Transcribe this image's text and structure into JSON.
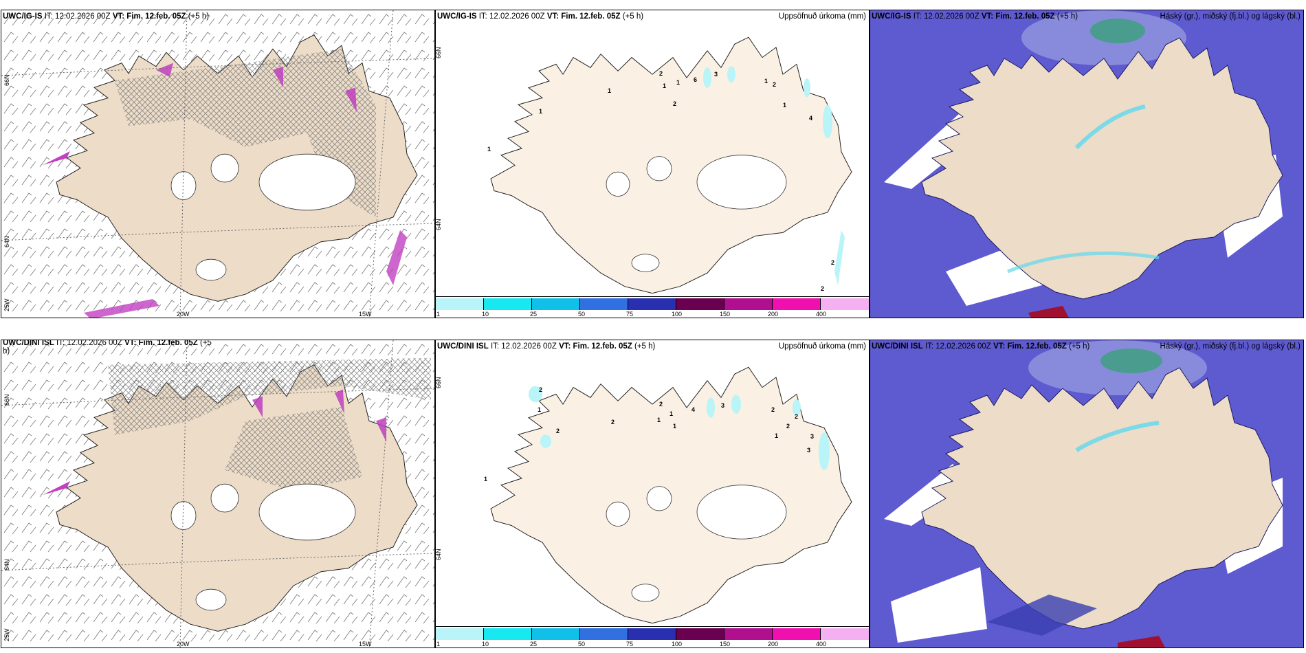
{
  "colors": {
    "land": "#ecdcc8",
    "land_light": "#faf0e4",
    "ice_white": "#ffffff",
    "sea_blue": "#5e5ad0",
    "mid_blue": "#3a3fb0",
    "cyan": "#5fd8f0",
    "green": "#3aa07a",
    "magenta": "#c040c0",
    "precip_light": "#b8f4f8"
  },
  "row1": {
    "left": {
      "model": "UWC/IG-IS",
      "it_label": "IT: 12.02.2026 00Z",
      "vt_label": "VT: Fim. 12.feb. 05Z",
      "lead": "(+5 h)",
      "lat_labels": [
        "66N",
        "64N"
      ],
      "lon_labels": [
        "25W",
        "20W",
        "15W"
      ]
    },
    "middle": {
      "model": "UWC/IG-IS",
      "it_label": "IT: 12.02.2026 00Z",
      "vt_label": "VT: Fim. 12.feb. 05Z",
      "lead": "(+5 h)",
      "right_title": "Uppsöfnuð úrkoma (mm)",
      "lat_labels": [
        "66N",
        "64N"
      ],
      "precip_values": [
        "1",
        "2",
        "1",
        "6",
        "3",
        "1",
        "2",
        "2",
        "1",
        "1",
        "4",
        "1",
        "1",
        "2",
        "2"
      ]
    },
    "right": {
      "model": "UWC/IG-IS",
      "it_label": "IT: 12.02.2026 00Z",
      "vt_label": "VT: Fim. 12.feb. 05Z",
      "lead": "(+5 h)",
      "right_title": "Háský (gr.), miðský (fj.bl.) og lágský (bl.)"
    }
  },
  "row2": {
    "left": {
      "model": "UWC/DINI ISL",
      "it_label": "IT: 12.02.2026 00Z",
      "vt_label": "VT: Fim. 12.feb. 05Z",
      "lead": "(+5",
      "lead_wrap": "h)",
      "lat_labels": [
        "66N",
        "64N"
      ],
      "lon_labels": [
        "25W",
        "20W",
        "15W"
      ]
    },
    "middle": {
      "model": "UWC/DINI ISL",
      "it_label": "IT: 12.02.2026 00Z",
      "vt_label": "VT: Fim. 12.feb. 05Z",
      "lead": "(+5 h)",
      "right_title": "Uppsöfnuð úrkoma (mm)",
      "lat_labels": [
        "66N",
        "64N"
      ],
      "precip_values": [
        "2",
        "1",
        "2",
        "2",
        "2",
        "1",
        "4",
        "3",
        "1",
        "1",
        "2",
        "2",
        "2",
        "1",
        "3",
        "3",
        "1"
      ]
    },
    "right": {
      "model": "UWC/DINI ISL",
      "it_label": "IT: 12.02.2026 00Z",
      "vt_label": "VT: Fim. 12.feb. 05Z",
      "lead": "(+5 h)",
      "right_title": "Háský (gr.), miðský (fj.bl.) og lágský (bl.)"
    }
  },
  "colorbar": {
    "labels": [
      "1",
      "10",
      "25",
      "50",
      "75",
      "100",
      "150",
      "200",
      "400"
    ],
    "colors": [
      "#b8f4f8",
      "#18e8f0",
      "#10c0e8",
      "#3070e0",
      "#2830b0",
      "#6a0050",
      "#b01090",
      "#f010b0",
      "#f4b0f0"
    ]
  }
}
